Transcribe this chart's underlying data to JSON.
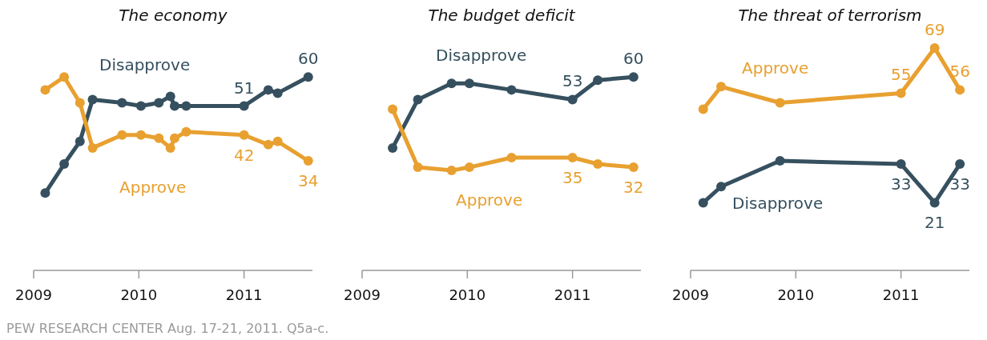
{
  "chart_data": [
    {
      "type": "line",
      "title": "The economy",
      "xlim": [
        2009,
        2011.65
      ],
      "xticks": [
        2009,
        2010,
        2011
      ],
      "tick_labels": "x",
      "marker": "circle",
      "legend": false,
      "series": [
        {
          "name": "Disapprove",
          "color": "#36505f",
          "x": [
            2009.11,
            2009.29,
            2009.44,
            2009.56,
            2009.84,
            2010.02,
            2010.19,
            2010.3,
            2010.34,
            2010.45,
            2011.0,
            2011.23,
            2011.32,
            2011.61
          ],
          "values": [
            24,
            33,
            40,
            53,
            52,
            51,
            52,
            54,
            51,
            51,
            51,
            56,
            55,
            60
          ],
          "value_labels": [
            null,
            null,
            null,
            null,
            null,
            null,
            null,
            null,
            null,
            null,
            "51",
            null,
            null,
            "60"
          ]
        },
        {
          "name": "Approve",
          "color": "#e8a030",
          "x": [
            2009.11,
            2009.29,
            2009.44,
            2009.56,
            2009.84,
            2010.02,
            2010.19,
            2010.3,
            2010.34,
            2010.45,
            2011.0,
            2011.23,
            2011.32,
            2011.61
          ],
          "values": [
            56,
            60,
            52,
            38,
            42,
            42,
            41,
            38,
            41,
            43,
            42,
            39,
            40,
            34
          ],
          "value_labels": [
            null,
            null,
            null,
            null,
            null,
            null,
            null,
            null,
            null,
            null,
            "42",
            null,
            null,
            "34"
          ]
        }
      ]
    },
    {
      "type": "line",
      "title": "The budget deficit",
      "xlim": [
        2009,
        2011.65
      ],
      "xticks": [
        2009,
        2010,
        2011
      ],
      "tick_labels": "x",
      "marker": "circle",
      "legend": false,
      "series": [
        {
          "name": "Disapprove",
          "color": "#36505f",
          "x": [
            2009.29,
            2009.53,
            2009.85,
            2010.02,
            2010.42,
            2011.0,
            2011.24,
            2011.58
          ],
          "values": [
            38,
            53,
            58,
            58,
            56,
            53,
            59,
            60
          ],
          "value_labels": [
            null,
            null,
            null,
            null,
            null,
            "53",
            null,
            "60"
          ]
        },
        {
          "name": "Approve",
          "color": "#e8a030",
          "x": [
            2009.29,
            2009.53,
            2009.85,
            2010.02,
            2010.42,
            2011.0,
            2011.24,
            2011.58
          ],
          "values": [
            50,
            32,
            31,
            32,
            35,
            35,
            33,
            32
          ],
          "value_labels": [
            null,
            null,
            null,
            null,
            null,
            "35",
            null,
            "32"
          ]
        }
      ]
    },
    {
      "type": "line",
      "title": "The threat of terrorism",
      "xlim": [
        2009,
        2011.65
      ],
      "xticks": [
        2009,
        2010,
        2011
      ],
      "tick_labels": "x",
      "marker": "circle",
      "legend": false,
      "series": [
        {
          "name": "Approve",
          "color": "#e8a030",
          "x": [
            2009.12,
            2009.29,
            2009.85,
            2011.0,
            2011.32,
            2011.56
          ],
          "values": [
            50,
            57,
            52,
            55,
            69,
            56
          ],
          "value_labels": [
            null,
            null,
            null,
            "55",
            "69",
            "56"
          ]
        },
        {
          "name": "Disapprove",
          "color": "#36505f",
          "x": [
            2009.12,
            2009.29,
            2009.85,
            2011.0,
            2011.32,
            2011.56
          ],
          "values": [
            21,
            26,
            34,
            33,
            21,
            33
          ],
          "value_labels": [
            null,
            null,
            null,
            "33",
            "21",
            "33"
          ]
        }
      ],
      "annotations": [
        "PEW RESEARCH CENTER Aug. 17-21, 2011. Q5a-c."
      ]
    }
  ]
}
